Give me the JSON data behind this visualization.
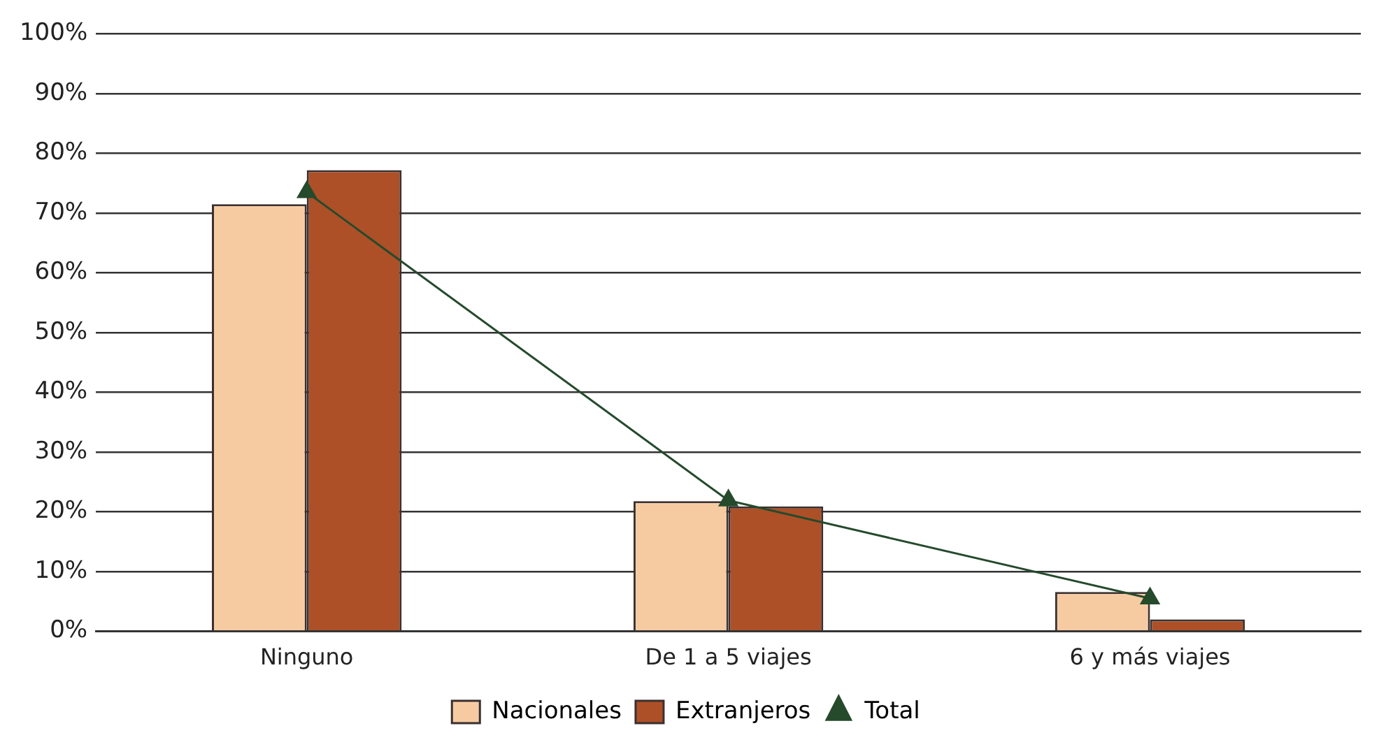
{
  "chart_data": {
    "type": "bar",
    "categories": [
      "Ninguno",
      "De 1 a 5 viajes",
      "6 y más viajes"
    ],
    "series": [
      {
        "name": "Nacionales",
        "color": "#f7cba2",
        "values": [
          71.5,
          21.8,
          6.6
        ]
      },
      {
        "name": "Extranjeros",
        "color": "#ad5027",
        "values": [
          77.2,
          20.9,
          2.0
        ]
      },
      {
        "name": "Total",
        "type": "line",
        "color": "#254a2c",
        "values": [
          73.5,
          21.9,
          5.5
        ]
      }
    ],
    "ylim": [
      0,
      100
    ],
    "yticks": [
      {
        "value": 0,
        "label": "0%"
      },
      {
        "value": 10,
        "label": "10%"
      },
      {
        "value": 20,
        "label": "20%"
      },
      {
        "value": 30,
        "label": "30%"
      },
      {
        "value": 40,
        "label": "40%"
      },
      {
        "value": 50,
        "label": "50%"
      },
      {
        "value": 60,
        "label": "60%"
      },
      {
        "value": 70,
        "label": "70%"
      },
      {
        "value": 80,
        "label": "80%"
      },
      {
        "value": 90,
        "label": "90%"
      },
      {
        "value": 100,
        "label": "100%"
      }
    ],
    "grid": "y",
    "legend": "bottom",
    "marker": "triangle"
  }
}
